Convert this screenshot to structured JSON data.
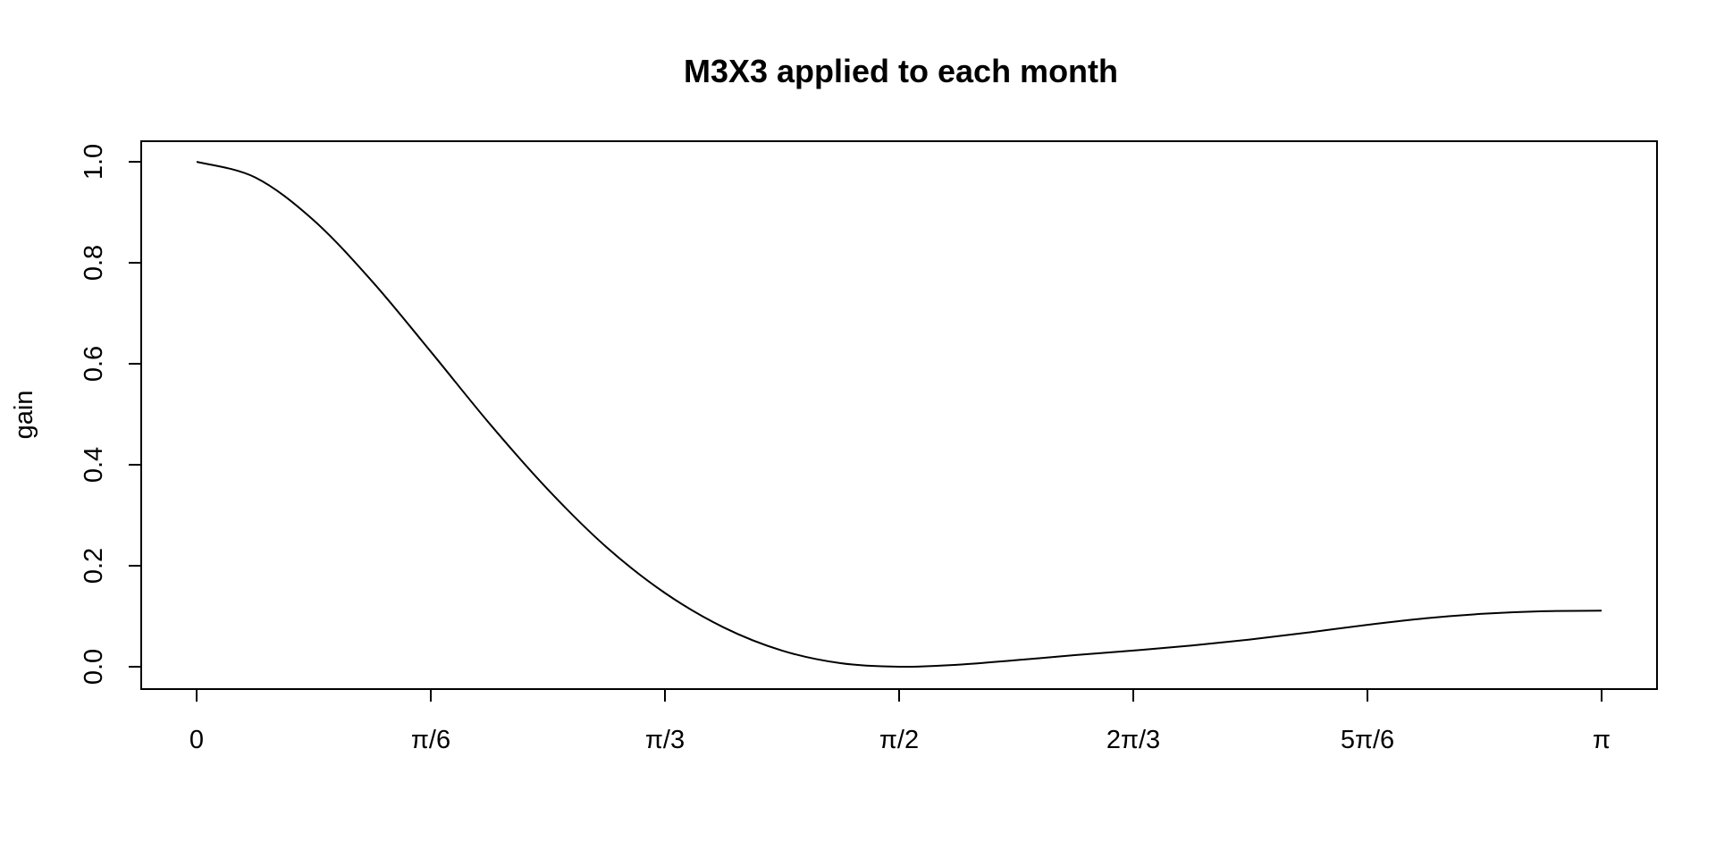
{
  "chart_data": {
    "type": "line",
    "title": "M3X3 applied to each month",
    "xlabel": "",
    "ylabel": "gain",
    "xlim": [
      0,
      3.14159
    ],
    "ylim": [
      0,
      1
    ],
    "grid": false,
    "x_ticks": [
      {
        "value": 0,
        "label": "0"
      },
      {
        "value": 0.5236,
        "label": "π/6"
      },
      {
        "value": 1.0472,
        "label": "π/3"
      },
      {
        "value": 1.5708,
        "label": "π/2"
      },
      {
        "value": 2.0944,
        "label": "2π/3"
      },
      {
        "value": 2.618,
        "label": "5π/6"
      },
      {
        "value": 3.14159,
        "label": "π"
      }
    ],
    "y_ticks": [
      {
        "value": 0.0,
        "label": "0.0"
      },
      {
        "value": 0.2,
        "label": "0.2"
      },
      {
        "value": 0.4,
        "label": "0.4"
      },
      {
        "value": 0.6,
        "label": "0.6"
      },
      {
        "value": 0.8,
        "label": "0.8"
      },
      {
        "value": 1.0,
        "label": "1.0"
      }
    ],
    "series": [
      {
        "color": "#000000",
        "x": [
          0,
          0.1309,
          0.2618,
          0.3927,
          0.5236,
          0.6545,
          0.7854,
          0.9163,
          1.0472,
          1.1781,
          1.309,
          1.4399,
          1.5708,
          1.7017,
          1.8326,
          1.9635,
          2.0944,
          2.2253,
          2.3562,
          2.4871,
          2.618,
          2.7489,
          2.8798,
          3.0107,
          3.1416
        ],
        "values": [
          1.0,
          0.969,
          0.884,
          0.763,
          0.624,
          0.482,
          0.351,
          0.237,
          0.146,
          0.078,
          0.032,
          0.007,
          0.0,
          0.004,
          0.013,
          0.023,
          0.032,
          0.042,
          0.054,
          0.068,
          0.083,
          0.096,
          0.105,
          0.11,
          0.111
        ]
      }
    ]
  }
}
